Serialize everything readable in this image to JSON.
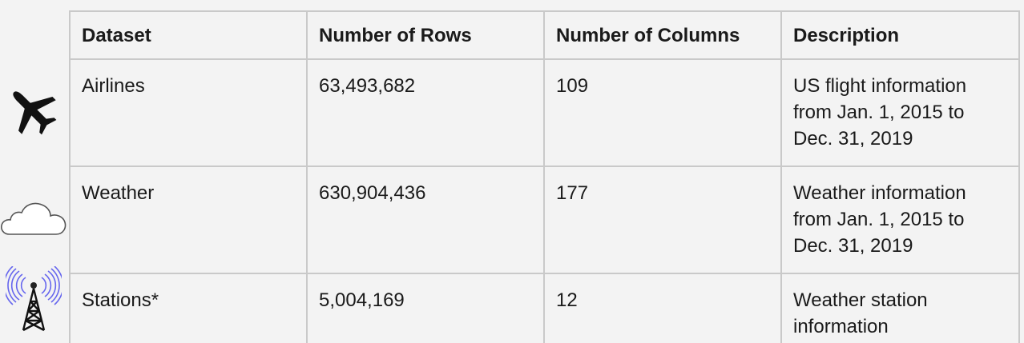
{
  "table": {
    "headers": [
      "Dataset",
      "Number of Rows",
      "Number of Columns",
      "Description"
    ],
    "rows": [
      {
        "dataset": "Airlines",
        "rows": "63,493,682",
        "columns": "109",
        "description": "US flight information from Jan. 1, 2015 to Dec. 31, 2019",
        "icon": "airplane-icon"
      },
      {
        "dataset": "Weather",
        "rows": "630,904,436",
        "columns": "177",
        "description": "Weather information from Jan. 1, 2015 to Dec. 31, 2019",
        "icon": "cloud-icon"
      },
      {
        "dataset": "Stations*",
        "rows": "5,004,169",
        "columns": "12",
        "description": "Weather station information",
        "icon": "radio-tower-icon"
      }
    ]
  },
  "colors": {
    "background": "#f3f3f3",
    "border": "#c9c9c9",
    "text": "#1a1a1a",
    "tower_waves": "#6666ee"
  }
}
